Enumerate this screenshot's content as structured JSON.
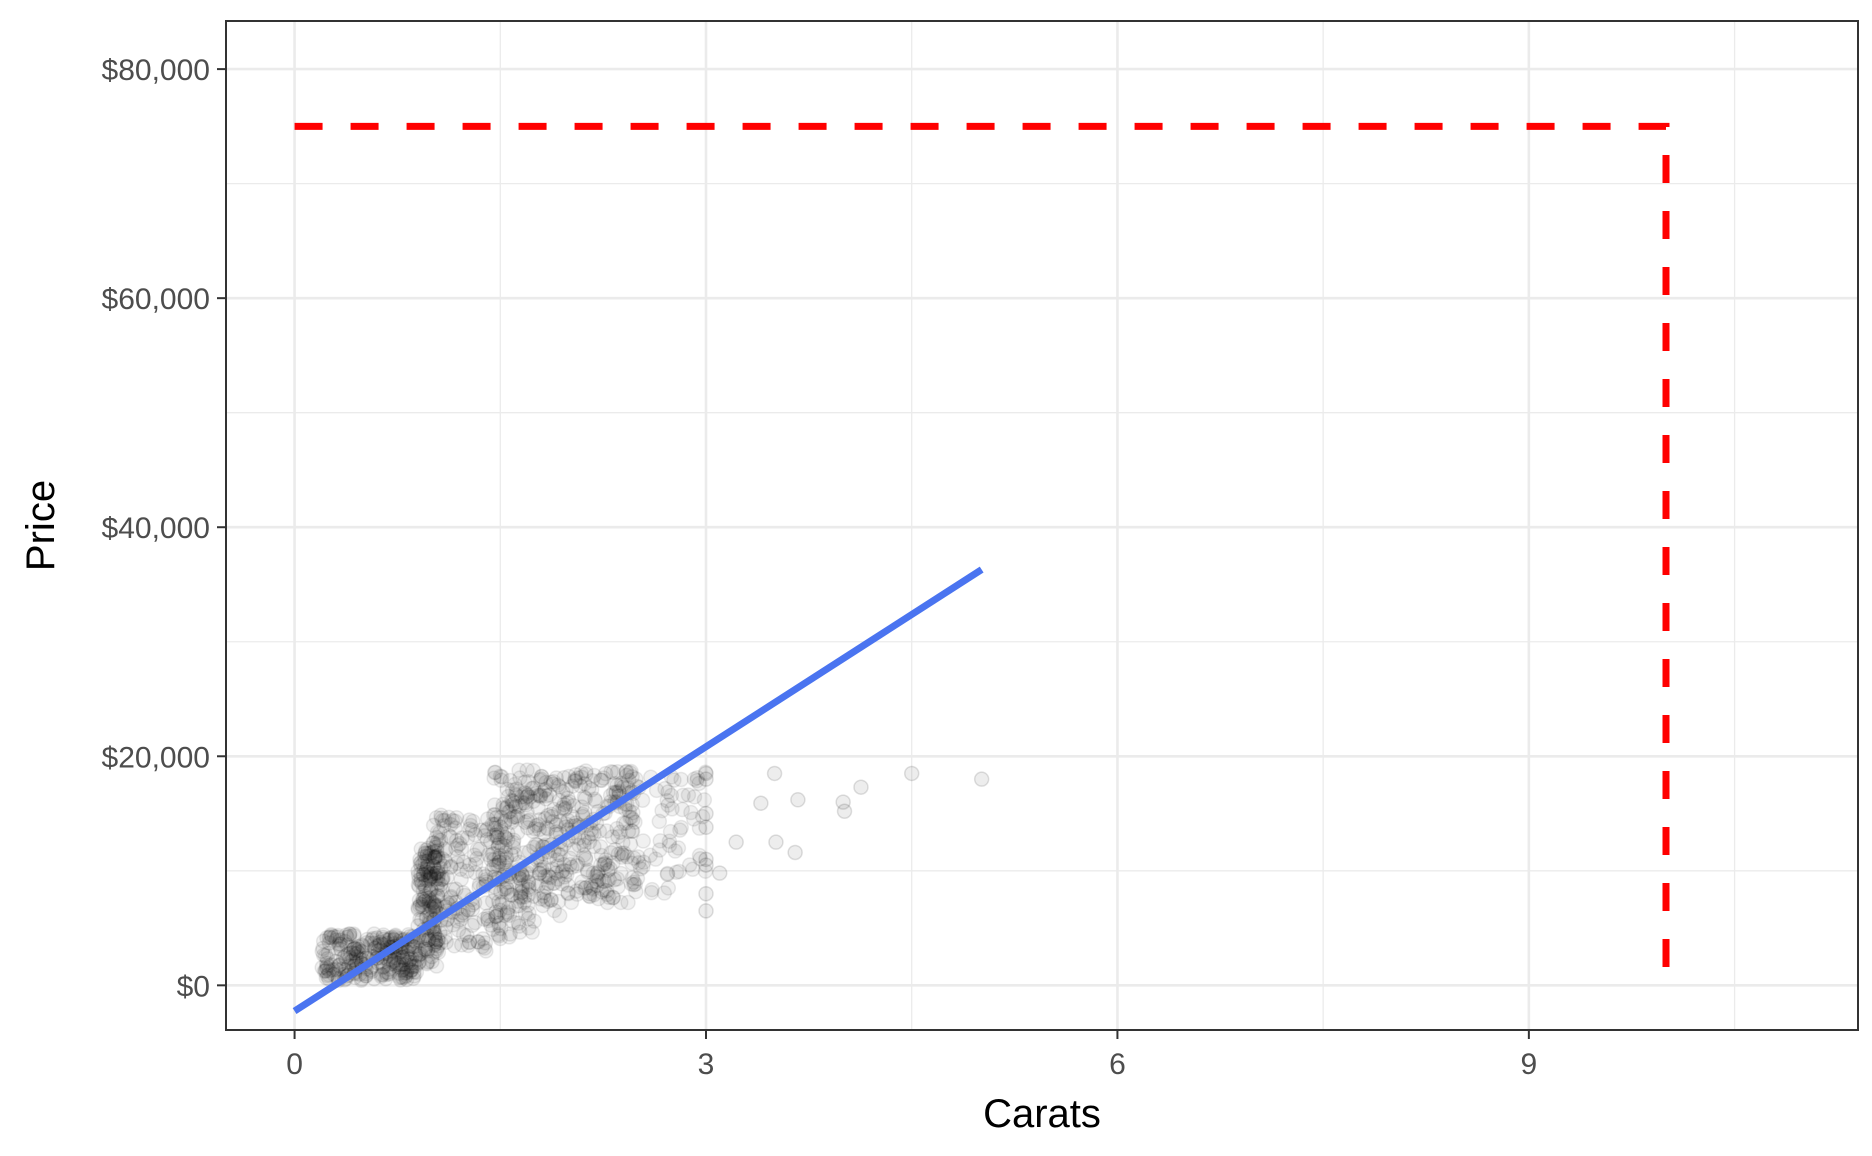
{
  "chart_data": {
    "type": "scatter",
    "title": "",
    "xlabel": "Carats",
    "ylabel": "Price",
    "xlim": [
      -0.5,
      11.4
    ],
    "ylim": [
      -3900,
      84200
    ],
    "x_ticks": [
      0,
      3,
      6,
      9
    ],
    "x_tick_labels": [
      "0",
      "3",
      "6",
      "9"
    ],
    "y_ticks": [
      0,
      20000,
      40000,
      60000,
      80000
    ],
    "y_tick_labels": [
      "$0",
      "$20,000",
      "$40,000",
      "$60,000",
      "$80,000"
    ],
    "x_minor_ticks": [
      1.5,
      4.5,
      7.5,
      10.5
    ],
    "y_minor_ticks": [
      10000,
      30000,
      50000,
      70000
    ],
    "grid": true,
    "theme": "bw",
    "point_color": "#000000",
    "point_alpha": 0.06,
    "scatter_clusters": [
      {
        "x_range": [
          0.2,
          0.9
        ],
        "y_range": [
          400,
          4500
        ],
        "n": 260
      },
      {
        "x_range": [
          0.9,
          1.05
        ],
        "y_range": [
          1500,
          12000
        ],
        "n": 150
      },
      {
        "x_range": [
          1.0,
          1.5
        ],
        "y_range": [
          2500,
          15000
        ],
        "n": 180
      },
      {
        "x_range": [
          1.45,
          1.75
        ],
        "y_range": [
          4000,
          18800
        ],
        "n": 170
      },
      {
        "x_range": [
          1.75,
          2.0
        ],
        "y_range": [
          6000,
          18500
        ],
        "n": 110
      },
      {
        "x_range": [
          1.98,
          2.5
        ],
        "y_range": [
          7000,
          18900
        ],
        "n": 200
      },
      {
        "x_range": [
          2.5,
          3.0
        ],
        "y_range": [
          8000,
          18800
        ],
        "n": 60
      }
    ],
    "outliers": [
      {
        "x": 3.0,
        "y": 18500
      },
      {
        "x": 3.0,
        "y": 18000
      },
      {
        "x": 3.0,
        "y": 15000
      },
      {
        "x": 3.0,
        "y": 13800
      },
      {
        "x": 3.0,
        "y": 11000
      },
      {
        "x": 3.0,
        "y": 10500
      },
      {
        "x": 3.0,
        "y": 8000
      },
      {
        "x": 3.0,
        "y": 6500
      },
      {
        "x": 3.1,
        "y": 9800
      },
      {
        "x": 3.22,
        "y": 12500
      },
      {
        "x": 3.5,
        "y": 18500
      },
      {
        "x": 3.51,
        "y": 12500
      },
      {
        "x": 3.4,
        "y": 15900
      },
      {
        "x": 3.65,
        "y": 11600
      },
      {
        "x": 3.67,
        "y": 16200
      },
      {
        "x": 4.0,
        "y": 16000
      },
      {
        "x": 4.01,
        "y": 15200
      },
      {
        "x": 4.13,
        "y": 17300
      },
      {
        "x": 4.5,
        "y": 18500
      },
      {
        "x": 5.01,
        "y": 18000
      }
    ],
    "series": [
      {
        "type": "line",
        "x": [
          0.0,
          5.01
        ],
        "y": [
          -2250,
          36300
        ],
        "color": "#4a74f0",
        "stroke": "solid"
      },
      {
        "type": "line",
        "x": [
          0.0,
          10.0,
          10.0
        ],
        "y": [
          75000,
          75000,
          0
        ],
        "color": "#ff0000",
        "stroke": "dashed"
      }
    ]
  }
}
